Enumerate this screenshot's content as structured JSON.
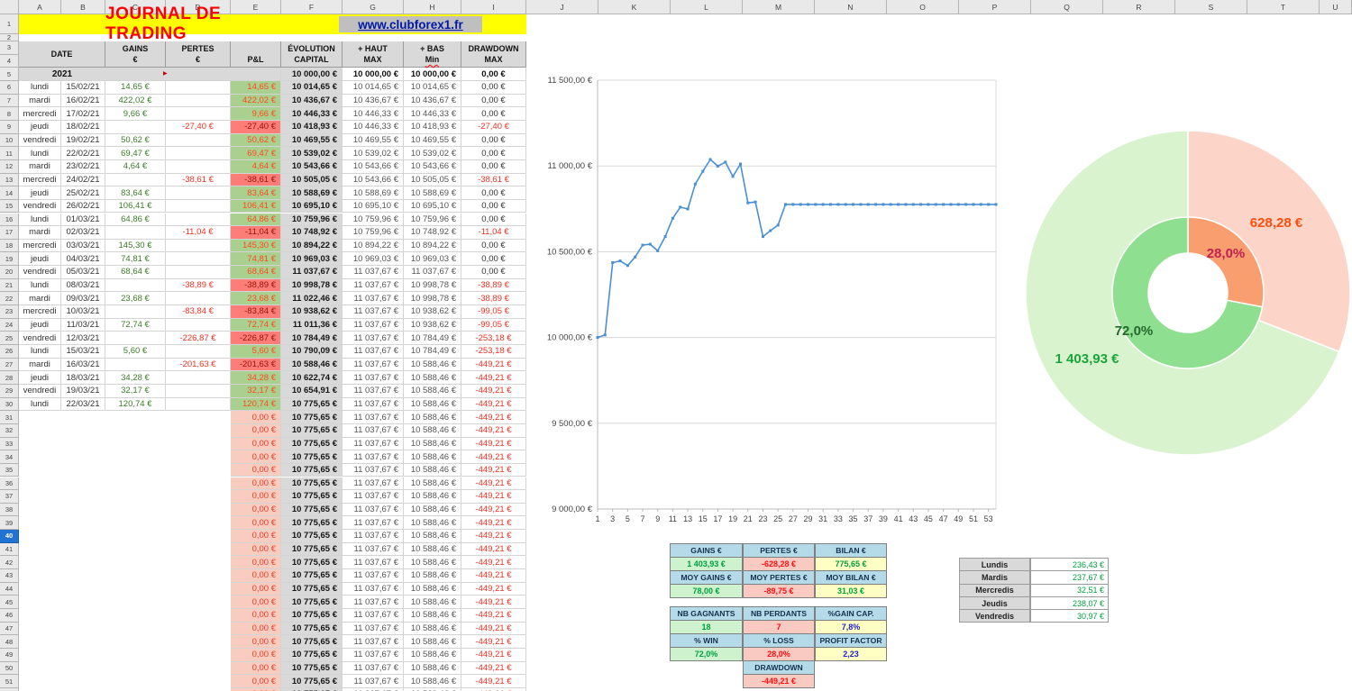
{
  "spreadsheet": {
    "column_letters": [
      "A",
      "B",
      "C",
      "D",
      "E",
      "F",
      "G",
      "H",
      "I",
      "J",
      "K",
      "L",
      "M",
      "N",
      "O",
      "P",
      "Q",
      "R",
      "S",
      "T",
      "U"
    ],
    "selected_row": 40,
    "row_count": 52,
    "title_bar": {
      "title": "JOURNAL DE TRADING",
      "url": "www.clubforex1.fr"
    },
    "table_header": {
      "date": "DATE",
      "gains_l1": "GAINS",
      "gains_l2": "€",
      "pertes_l1": "PERTES",
      "pertes_l2": "€",
      "pnl": "P&L",
      "evol_l1": "ÉVOLUTION",
      "evol_l2": "CAPITAL",
      "haut_l1": "+ HAUT",
      "haut_l2": "MAX",
      "bas_l1": "+ BAS",
      "bas_l2": "Min",
      "dd_l1": "DRAWDOWN",
      "dd_l2": "MAX"
    },
    "year_row": {
      "year": "2021",
      "cap": "10 000,00 €",
      "high": "10 000,00 €",
      "low": "10 000,00 €",
      "dd": "0,00 €"
    },
    "rows": [
      {
        "n": 6,
        "day": "lundi",
        "date": "15/02/21",
        "gain": "14,65 €",
        "loss": "",
        "pnl": "14,65 €",
        "cap": "10 014,65 €",
        "high": "10 014,65 €",
        "low": "10 014,65 €",
        "dd": "0,00 €"
      },
      {
        "n": 7,
        "day": "mardi",
        "date": "16/02/21",
        "gain": "422,02 €",
        "loss": "",
        "pnl": "422,02 €",
        "cap": "10 436,67 €",
        "high": "10 436,67 €",
        "low": "10 436,67 €",
        "dd": "0,00 €"
      },
      {
        "n": 8,
        "day": "mercredi",
        "date": "17/02/21",
        "gain": "9,66 €",
        "loss": "",
        "pnl": "9,66 €",
        "cap": "10 446,33 €",
        "high": "10 446,33 €",
        "low": "10 446,33 €",
        "dd": "0,00 €"
      },
      {
        "n": 9,
        "day": "jeudi",
        "date": "18/02/21",
        "gain": "",
        "loss": "-27,40 €",
        "pnl": "-27,40 €",
        "cap": "10 418,93 €",
        "high": "10 446,33 €",
        "low": "10 418,93 €",
        "dd": "-27,40 €"
      },
      {
        "n": 10,
        "day": "vendredi",
        "date": "19/02/21",
        "gain": "50,62 €",
        "loss": "",
        "pnl": "50,62 €",
        "cap": "10 469,55 €",
        "high": "10 469,55 €",
        "low": "10 469,55 €",
        "dd": "0,00 €"
      },
      {
        "n": 11,
        "day": "lundi",
        "date": "22/02/21",
        "gain": "69,47 €",
        "loss": "",
        "pnl": "69,47 €",
        "cap": "10 539,02 €",
        "high": "10 539,02 €",
        "low": "10 539,02 €",
        "dd": "0,00 €"
      },
      {
        "n": 12,
        "day": "mardi",
        "date": "23/02/21",
        "gain": "4,64 €",
        "loss": "",
        "pnl": "4,64 €",
        "cap": "10 543,66 €",
        "high": "10 543,66 €",
        "low": "10 543,66 €",
        "dd": "0,00 €"
      },
      {
        "n": 13,
        "day": "mercredi",
        "date": "24/02/21",
        "gain": "",
        "loss": "-38,61 €",
        "pnl": "-38,61 €",
        "cap": "10 505,05 €",
        "high": "10 543,66 €",
        "low": "10 505,05 €",
        "dd": "-38,61 €"
      },
      {
        "n": 14,
        "day": "jeudi",
        "date": "25/02/21",
        "gain": "83,64 €",
        "loss": "",
        "pnl": "83,64 €",
        "cap": "10 588,69 €",
        "high": "10 588,69 €",
        "low": "10 588,69 €",
        "dd": "0,00 €"
      },
      {
        "n": 15,
        "day": "vendredi",
        "date": "26/02/21",
        "gain": "106,41 €",
        "loss": "",
        "pnl": "106,41 €",
        "cap": "10 695,10 €",
        "high": "10 695,10 €",
        "low": "10 695,10 €",
        "dd": "0,00 €"
      },
      {
        "n": 16,
        "day": "lundi",
        "date": "01/03/21",
        "gain": "64,86 €",
        "loss": "",
        "pnl": "64,86 €",
        "cap": "10 759,96 €",
        "high": "10 759,96 €",
        "low": "10 759,96 €",
        "dd": "0,00 €"
      },
      {
        "n": 17,
        "day": "mardi",
        "date": "02/03/21",
        "gain": "",
        "loss": "-11,04 €",
        "pnl": "-11,04 €",
        "cap": "10 748,92 €",
        "high": "10 759,96 €",
        "low": "10 748,92 €",
        "dd": "-11,04 €"
      },
      {
        "n": 18,
        "day": "mercredi",
        "date": "03/03/21",
        "gain": "145,30 €",
        "loss": "",
        "pnl": "145,30 €",
        "cap": "10 894,22 €",
        "high": "10 894,22 €",
        "low": "10 894,22 €",
        "dd": "0,00 €"
      },
      {
        "n": 19,
        "day": "jeudi",
        "date": "04/03/21",
        "gain": "74,81 €",
        "loss": "",
        "pnl": "74,81 €",
        "cap": "10 969,03 €",
        "high": "10 969,03 €",
        "low": "10 969,03 €",
        "dd": "0,00 €"
      },
      {
        "n": 20,
        "day": "vendredi",
        "date": "05/03/21",
        "gain": "68,64 €",
        "loss": "",
        "pnl": "68,64 €",
        "cap": "11 037,67 €",
        "high": "11 037,67 €",
        "low": "11 037,67 €",
        "dd": "0,00 €"
      },
      {
        "n": 21,
        "day": "lundi",
        "date": "08/03/21",
        "gain": "",
        "loss": "-38,89 €",
        "pnl": "-38,89 €",
        "cap": "10 998,78 €",
        "high": "11 037,67 €",
        "low": "10 998,78 €",
        "dd": "-38,89 €"
      },
      {
        "n": 22,
        "day": "mardi",
        "date": "09/03/21",
        "gain": "23,68 €",
        "loss": "",
        "pnl": "23,68 €",
        "cap": "11 022,46 €",
        "high": "11 037,67 €",
        "low": "10 998,78 €",
        "dd": "-38,89 €"
      },
      {
        "n": 23,
        "day": "mercredi",
        "date": "10/03/21",
        "gain": "",
        "loss": "-83,84 €",
        "pnl": "-83,84 €",
        "cap": "10 938,62 €",
        "high": "11 037,67 €",
        "low": "10 938,62 €",
        "dd": "-99,05 €"
      },
      {
        "n": 24,
        "day": "jeudi",
        "date": "11/03/21",
        "gain": "72,74 €",
        "loss": "",
        "pnl": "72,74 €",
        "cap": "11 011,36 €",
        "high": "11 037,67 €",
        "low": "10 938,62 €",
        "dd": "-99,05 €"
      },
      {
        "n": 25,
        "day": "vendredi",
        "date": "12/03/21",
        "gain": "",
        "loss": "-226,87 €",
        "pnl": "-226,87 €",
        "cap": "10 784,49 €",
        "high": "11 037,67 €",
        "low": "10 784,49 €",
        "dd": "-253,18 €"
      },
      {
        "n": 26,
        "day": "lundi",
        "date": "15/03/21",
        "gain": "5,60 €",
        "loss": "",
        "pnl": "5,60 €",
        "cap": "10 790,09 €",
        "high": "11 037,67 €",
        "low": "10 784,49 €",
        "dd": "-253,18 €"
      },
      {
        "n": 27,
        "day": "mardi",
        "date": "16/03/21",
        "gain": "",
        "loss": "-201,63 €",
        "pnl": "-201,63 €",
        "cap": "10 588,46 €",
        "high": "11 037,67 €",
        "low": "10 588,46 €",
        "dd": "-449,21 €"
      },
      {
        "n": 28,
        "day": "jeudi",
        "date": "18/03/21",
        "gain": "34,28 €",
        "loss": "",
        "pnl": "34,28 €",
        "cap": "10 622,74 €",
        "high": "11 037,67 €",
        "low": "10 588,46 €",
        "dd": "-449,21 €"
      },
      {
        "n": 29,
        "day": "vendredi",
        "date": "19/03/21",
        "gain": "32,17 €",
        "loss": "",
        "pnl": "32,17 €",
        "cap": "10 654,91 €",
        "high": "11 037,67 €",
        "low": "10 588,46 €",
        "dd": "-449,21 €"
      },
      {
        "n": 30,
        "day": "lundi",
        "date": "22/03/21",
        "gain": "120,74 €",
        "loss": "",
        "pnl": "120,74 €",
        "cap": "10 775,65 €",
        "high": "11 037,67 €",
        "low": "10 588,46 €",
        "dd": "-449,21 €"
      }
    ],
    "filler_row": {
      "pnl": "0,00 €",
      "cap": "10 775,65 €",
      "high": "11 037,67 €",
      "low": "10 588,46 €",
      "dd": "-449,21 €",
      "count": 22,
      "first_n": 31
    }
  },
  "chart_data": [
    {
      "type": "line",
      "title": "",
      "series": [
        {
          "name": "ÉVOLUTION CAPITAL",
          "values": [
            10000,
            10014.65,
            10436.67,
            10446.33,
            10418.93,
            10469.55,
            10539.02,
            10543.66,
            10505.05,
            10588.69,
            10695.1,
            10759.96,
            10748.92,
            10894.22,
            10969.03,
            11037.67,
            10998.78,
            11022.46,
            10938.62,
            11011.36,
            10784.49,
            10790.09,
            10588.46,
            10622.74,
            10654.91,
            10775.65,
            10775.65,
            10775.65,
            10775.65,
            10775.65,
            10775.65,
            10775.65,
            10775.65,
            10775.65,
            10775.65,
            10775.65,
            10775.65,
            10775.65,
            10775.65,
            10775.65,
            10775.65,
            10775.65,
            10775.65,
            10775.65,
            10775.65,
            10775.65,
            10775.65,
            10775.65,
            10775.65,
            10775.65,
            10775.65,
            10775.65,
            10775.65,
            10775.65
          ]
        }
      ],
      "x_tick_labels": [
        "1",
        "3",
        "5",
        "7",
        "9",
        "11",
        "13",
        "15",
        "17",
        "19",
        "21",
        "23",
        "25",
        "27",
        "29",
        "31",
        "33",
        "35",
        "37",
        "39",
        "41",
        "43",
        "45",
        "47",
        "49",
        "51",
        "53"
      ],
      "ylim": [
        9000,
        11500
      ],
      "ytick_labels": [
        "9 000,00 €",
        "9 500,00 €",
        "10 000,00 €",
        "10 500,00 €",
        "11 000,00 €",
        "11 500,00 €"
      ],
      "grid": true,
      "legend": "none",
      "line_color": "#4a8fd3"
    },
    {
      "type": "donut",
      "rings": [
        {
          "name": "amounts-outer",
          "slices": [
            {
              "label": "628,28 €",
              "value": 628.28,
              "color": "#fcd5c8",
              "label_color": "#fc4e0c"
            },
            {
              "label": "1 403,93 €",
              "value": 1403.93,
              "color": "#d9f3cf",
              "label_color": "#1aa53a"
            }
          ]
        },
        {
          "name": "percent-inner",
          "slices": [
            {
              "label": "28,0%",
              "value": 28,
              "color": "#f99e6f",
              "label_color": "#bf2052"
            },
            {
              "label": "72,0%",
              "value": 72,
              "color": "#8fdf90",
              "label_color": "#24682c"
            }
          ]
        }
      ]
    }
  ],
  "stats_table1": {
    "rows": [
      [
        {
          "t": "GAINS €",
          "k": "h"
        },
        {
          "t": "PERTES €",
          "k": "h"
        },
        {
          "t": "BILAN €",
          "k": "h"
        }
      ],
      [
        {
          "t": "1 403,93 €",
          "k": "g"
        },
        {
          "t": "-628,28 €",
          "k": "r"
        },
        {
          "t": "775,65 €",
          "k": "y"
        }
      ],
      [
        {
          "t": "MOY GAINS €",
          "k": "h"
        },
        {
          "t": "MOY PERTES €",
          "k": "h"
        },
        {
          "t": "MOY BILAN €",
          "k": "h"
        }
      ],
      [
        {
          "t": "78,00 €",
          "k": "g"
        },
        {
          "t": "-89,75 €",
          "k": "r"
        },
        {
          "t": "31,03 €",
          "k": "y"
        }
      ]
    ]
  },
  "stats_table2": {
    "rows": [
      [
        {
          "t": "NB GAGNANTS",
          "k": "h"
        },
        {
          "t": "NB PERDANTS",
          "k": "h"
        },
        {
          "t": "%GAIN CAP.",
          "k": "h"
        }
      ],
      [
        {
          "t": "18",
          "k": "g"
        },
        {
          "t": "7",
          "k": "r"
        },
        {
          "t": "7,8%",
          "k": "yb"
        }
      ],
      [
        {
          "t": "% WIN",
          "k": "h"
        },
        {
          "t": "% LOSS",
          "k": "h"
        },
        {
          "t": "PROFIT FACTOR",
          "k": "h"
        }
      ],
      [
        {
          "t": "72,0%",
          "k": "g"
        },
        {
          "t": "28,0%",
          "k": "r"
        },
        {
          "t": "2,23",
          "k": "yb"
        }
      ],
      [
        null,
        {
          "t": "DRAWDOWN",
          "k": "h"
        },
        null
      ],
      [
        null,
        {
          "t": "-449,21 €",
          "k": "r"
        },
        null
      ]
    ]
  },
  "days_table": {
    "rows": [
      [
        "Lundis",
        "236,43 €"
      ],
      [
        "Mardis",
        "237,67 €"
      ],
      [
        "Mercredis",
        "32,51 €"
      ],
      [
        "Jeudis",
        "238,07 €"
      ],
      [
        "Vendredis",
        "30,97 €"
      ]
    ]
  },
  "colors": {
    "title_red": "#ff0000",
    "banner_yellow": "#ffff00",
    "url_blue": "#0018a8",
    "header_gray": "#d9d9d9",
    "pnl_pos_bg": "#a9d08e",
    "pnl_neg_bg": "#fd7e78",
    "pnl_zero_bg": "#f8cdc0",
    "gain_green": "#3c7d28",
    "loss_red": "#ef3124",
    "chart_line_blue": "#4a8fd3",
    "donut_outer_win": "#d9f3cf",
    "donut_outer_loss": "#fcd5c8",
    "donut_inner_win": "#8fdf90",
    "donut_inner_loss": "#f99e6f",
    "stat_header_blue": "#b5dbe9",
    "stat_green_bg": "#cdf2cd",
    "stat_red_bg": "#f9cac2",
    "stat_yellow_bg": "#ffffc4"
  }
}
